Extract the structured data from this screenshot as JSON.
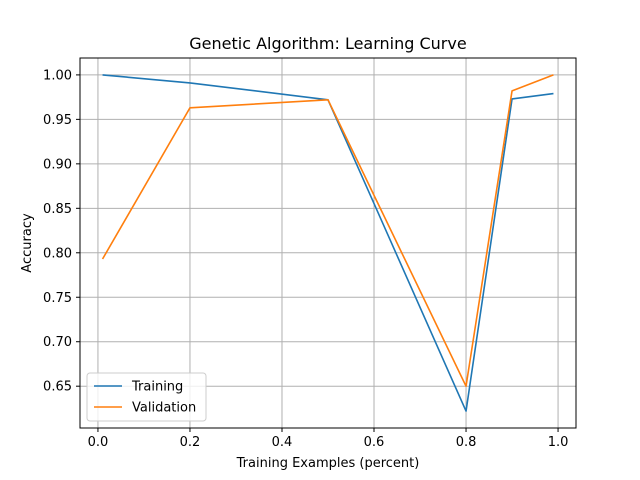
{
  "chart_data": {
    "type": "line",
    "title": "Genetic Algorithm: Learning Curve",
    "xlabel": "Training Examples (percent)",
    "ylabel": "Accuracy",
    "xlim": [
      -0.039,
      1.039
    ],
    "ylim": [
      0.603,
      1.019
    ],
    "xticks": [
      0.0,
      0.2,
      0.4,
      0.6,
      0.8,
      1.0
    ],
    "xtick_labels": [
      "0.0",
      "0.2",
      "0.4",
      "0.6",
      "0.8",
      "1.0"
    ],
    "yticks": [
      0.65,
      0.7,
      0.75,
      0.8,
      0.85,
      0.9,
      0.95,
      1.0
    ],
    "ytick_labels": [
      "0.65",
      "0.70",
      "0.75",
      "0.80",
      "0.85",
      "0.90",
      "0.95",
      "1.00"
    ],
    "grid": true,
    "legend_position": "lower-left",
    "x": [
      0.01,
      0.2,
      0.5,
      0.8,
      0.9,
      0.99
    ],
    "series": [
      {
        "name": "Training",
        "color": "#1f77b4",
        "values": [
          1.0,
          0.991,
          0.972,
          0.622,
          0.973,
          0.979
        ]
      },
      {
        "name": "Validation",
        "color": "#ff7f0e",
        "values": [
          0.793,
          0.963,
          0.972,
          0.65,
          0.982,
          1.0
        ]
      }
    ]
  }
}
